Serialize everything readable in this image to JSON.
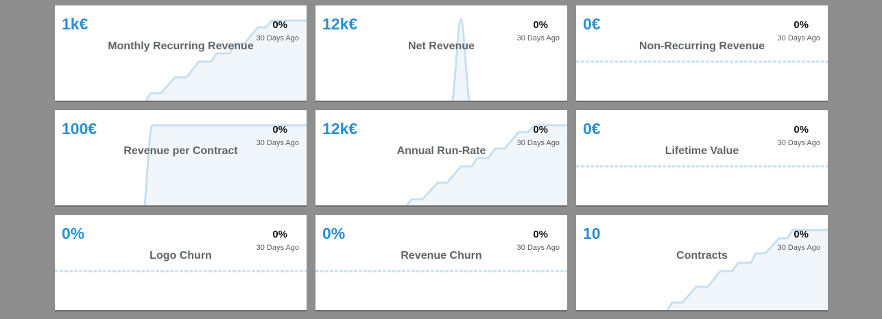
{
  "accent_color": "#2a8fd0",
  "cards": [
    {
      "value": "1k€",
      "title": "Monthly Recurring Revenue",
      "change": "0%",
      "period": "30 Days Ago"
    },
    {
      "value": "12k€",
      "title": "Net Revenue",
      "change": "0%",
      "period": "30 Days Ago"
    },
    {
      "value": "0€",
      "title": "Non-Recurring Revenue",
      "change": "0%",
      "period": "30 Days Ago"
    },
    {
      "value": "100€",
      "title": "Revenue per Contract",
      "change": "0%",
      "period": "30 Days Ago"
    },
    {
      "value": "12k€",
      "title": "Annual Run-Rate",
      "change": "0%",
      "period": "30 Days Ago"
    },
    {
      "value": "0€",
      "title": "Lifetime Value",
      "change": "0%",
      "period": "30 Days Ago"
    },
    {
      "value": "0%",
      "title": "Logo Churn",
      "change": "0%",
      "period": "30 Days Ago"
    },
    {
      "value": "0%",
      "title": "Revenue Churn",
      "change": "0%",
      "period": "30 Days Ago"
    },
    {
      "value": "10",
      "title": "Contracts",
      "change": "0%",
      "period": "30 Days Ago"
    }
  ]
}
